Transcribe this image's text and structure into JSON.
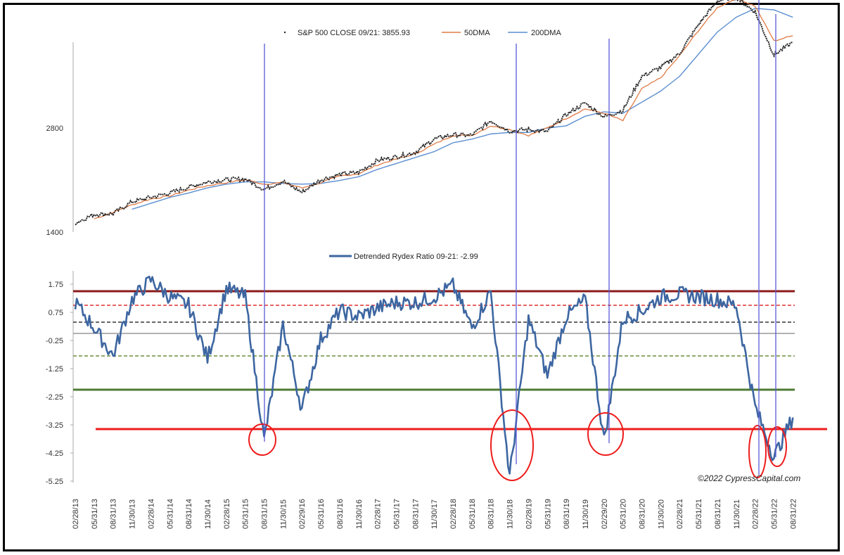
{
  "chart_data": [
    {
      "type": "line",
      "title": "",
      "legend": [
        {
          "name": "S&P 500 CLOSE 09/21: 3855.93",
          "color": "#222222",
          "style": "dots"
        },
        {
          "name": "50DMA",
          "color": "#e07b45",
          "style": "line"
        },
        {
          "name": "200DMA",
          "color": "#5b8ed0",
          "style": "line"
        }
      ],
      "legend_position": "top",
      "xlabel": "",
      "ylabel": "",
      "y_ticks": [
        1400,
        2800
      ],
      "ylim": [
        1400,
        4900
      ],
      "grid": false,
      "x": [
        "02/28/13",
        "05/31/13",
        "08/31/13",
        "11/30/13",
        "02/28/14",
        "05/31/14",
        "08/31/14",
        "11/30/14",
        "02/28/15",
        "05/31/15",
        "08/31/15",
        "11/30/15",
        "02/29/16",
        "05/31/16",
        "08/31/16",
        "11/30/16",
        "02/28/17",
        "05/31/17",
        "08/31/17",
        "11/30/17",
        "02/28/18",
        "05/31/18",
        "08/31/18",
        "11/30/18",
        "02/28/19",
        "05/31/19",
        "08/31/19",
        "11/30/19",
        "02/29/20",
        "05/31/20",
        "08/31/20",
        "11/30/20",
        "02/28/21",
        "05/31/21",
        "08/31/21",
        "11/30/21",
        "02/28/22",
        "05/31/22",
        "08/31/22"
      ],
      "series": [
        {
          "name": "S&P 500 CLOSE",
          "values": [
            1515,
            1630,
            1640,
            1800,
            1860,
            1920,
            2000,
            2070,
            2100,
            2110,
            1970,
            2080,
            1930,
            2100,
            2170,
            2200,
            2360,
            2410,
            2470,
            2650,
            2710,
            2700,
            2900,
            2760,
            2780,
            2750,
            2980,
            3140,
            2950,
            3040,
            3500,
            3620,
            3810,
            4200,
            4520,
            4570,
            4370,
            3790,
            3960
          ],
          "final_value": 3855.93
        },
        {
          "name": "50DMA",
          "values": [
            null,
            1570,
            1660,
            1760,
            1840,
            1880,
            1960,
            2020,
            2060,
            2100,
            2040,
            2060,
            1990,
            2060,
            2150,
            2180,
            2300,
            2380,
            2450,
            2580,
            2700,
            2700,
            2830,
            2780,
            2700,
            2800,
            2930,
            3060,
            3000,
            2900,
            3330,
            3480,
            3780,
            4120,
            4430,
            4560,
            4450,
            3980,
            4050
          ]
        },
        {
          "name": "200DMA",
          "values": [
            null,
            null,
            null,
            1700,
            1780,
            1860,
            1920,
            1990,
            2040,
            2070,
            2070,
            2050,
            2040,
            2050,
            2090,
            2140,
            2240,
            2320,
            2400,
            2480,
            2600,
            2650,
            2720,
            2740,
            2740,
            2800,
            2830,
            2960,
            3020,
            3000,
            3150,
            3300,
            3500,
            3800,
            4100,
            4300,
            4420,
            4400,
            4300
          ]
        }
      ],
      "vertical_markers": [
        "08/31/15",
        "01/15/19",
        "03/15/20",
        "02/28/22",
        "05/31/22"
      ]
    },
    {
      "type": "line",
      "title": "",
      "legend": [
        {
          "name": "Detrended Rydex Ratio 09-21: -2.99",
          "color": "#3d66a1",
          "style": "line"
        }
      ],
      "legend_position": "top",
      "xlabel": "",
      "ylabel": "",
      "y_ticks": [
        1.75,
        0.75,
        -0.25,
        -1.25,
        -2.25,
        -3.25,
        -4.25,
        -5.25
      ],
      "ylim": [
        -5.25,
        2.3
      ],
      "grid": false,
      "x": [
        "02/28/13",
        "05/31/13",
        "08/31/13",
        "11/30/13",
        "02/28/14",
        "05/31/14",
        "08/31/14",
        "11/30/14",
        "02/28/15",
        "05/31/15",
        "08/31/15",
        "11/30/15",
        "02/29/16",
        "05/31/16",
        "08/31/16",
        "11/30/16",
        "02/28/17",
        "05/31/17",
        "08/31/17",
        "11/30/17",
        "02/28/18",
        "05/31/18",
        "08/31/18",
        "11/30/18",
        "02/28/19",
        "05/31/19",
        "08/31/19",
        "11/30/19",
        "02/29/20",
        "05/31/20",
        "08/31/20",
        "11/30/20",
        "02/28/21",
        "05/31/21",
        "08/31/21",
        "11/30/21",
        "02/28/22",
        "05/31/22",
        "08/31/22"
      ],
      "series": [
        {
          "name": "Detrended Rydex Ratio",
          "values": [
            1.1,
            0.2,
            -0.8,
            1.2,
            1.9,
            1.3,
            1.0,
            -0.9,
            1.6,
            1.3,
            -3.8,
            0.3,
            -2.7,
            -0.2,
            0.8,
            0.6,
            0.9,
            1.1,
            1.1,
            1.3,
            1.7,
            0.2,
            1.5,
            -5.1,
            0.5,
            -1.5,
            0.6,
            1.2,
            -3.8,
            0.5,
            0.8,
            1.3,
            1.4,
            1.3,
            1.2,
            1.0,
            -2.6,
            -4.4,
            -2.99
          ],
          "final_value": -2.99
        }
      ],
      "reference_lines": [
        {
          "value": 1.5,
          "color": "#8b1a1a",
          "style": "solid",
          "width": 3
        },
        {
          "value": 1.0,
          "color": "#e03030",
          "style": "dashed"
        },
        {
          "value": 0.4,
          "color": "#333333",
          "style": "dashed"
        },
        {
          "value": 0.0,
          "color": "#999999",
          "style": "solid"
        },
        {
          "value": -0.8,
          "color": "#6b8e3d",
          "style": "dashed"
        },
        {
          "value": -2.0,
          "color": "#4f7a32",
          "style": "solid",
          "width": 3
        },
        {
          "value": -3.4,
          "color": "#ee1c1c",
          "style": "solid",
          "width": 3
        }
      ],
      "annotations": [
        {
          "type": "ellipse",
          "color": "#ee1c1c",
          "at": "08/31/15"
        },
        {
          "type": "ellipse",
          "color": "#ee1c1c",
          "at": "12/2018"
        },
        {
          "type": "ellipse",
          "color": "#ee1c1c",
          "at": "03/2020"
        },
        {
          "type": "ellipse",
          "color": "#ee1c1c",
          "at": "02/2022"
        },
        {
          "type": "ellipse",
          "color": "#ee1c1c",
          "at": "05/2022"
        }
      ]
    }
  ],
  "top_legend": {
    "sp500": "S&P 500 CLOSE 09/21: 3855.93",
    "dma50": "50DMA",
    "dma200": "200DMA"
  },
  "bottom_legend": {
    "rydex": "Detrended Rydex Ratio 09-21: -2.99"
  },
  "top_axis": {
    "ticks": [
      "2800",
      "1400"
    ]
  },
  "bottom_axis": {
    "ticks": [
      "1.75",
      "0.75",
      "-0.25",
      "-1.25",
      "-2.25",
      "-3.25",
      "-4.25",
      "-5.25"
    ]
  },
  "x_axis": {
    "labels": [
      "02/28/13",
      "05/31/13",
      "08/31/13",
      "11/30/13",
      "02/28/14",
      "05/31/14",
      "08/31/14",
      "11/30/14",
      "02/28/15",
      "05/31/15",
      "08/31/15",
      "11/30/15",
      "02/29/16",
      "05/31/16",
      "08/31/16",
      "11/30/16",
      "02/28/17",
      "05/31/17",
      "08/31/17",
      "11/30/17",
      "02/28/18",
      "05/31/18",
      "08/31/18",
      "11/30/18",
      "02/28/19",
      "05/31/19",
      "08/31/19",
      "11/30/19",
      "02/29/20",
      "05/31/20",
      "08/31/20",
      "11/30/20",
      "02/28/21",
      "05/31/21",
      "08/31/21",
      "11/30/21",
      "02/28/22",
      "05/31/22",
      "08/31/22"
    ]
  },
  "credit": "©2022 CypressCapital.com",
  "colors": {
    "sp500": "#222222",
    "dma50": "#e07b45",
    "dma200": "#5b8ed0",
    "rydex": "#3d66a1",
    "marker": "#5a5ad8",
    "highlight": "#ee1c1c"
  }
}
